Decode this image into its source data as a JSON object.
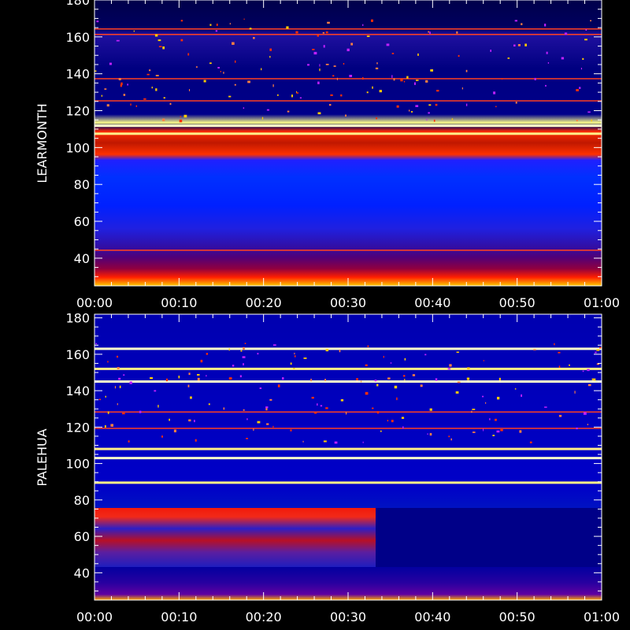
{
  "chart_data": [
    {
      "type": "heatmap",
      "station": "LEARMONTH",
      "ylabel": "LEARMONTH",
      "xlim": [
        "00:00",
        "01:00"
      ],
      "ylim": [
        25,
        180
      ],
      "x_ticks": [
        "00:00",
        "00:10",
        "00:20",
        "00:30",
        "00:40",
        "00:50",
        "01:00"
      ],
      "y_ticks": [
        40,
        60,
        80,
        100,
        120,
        140,
        160,
        180
      ],
      "colors": {
        "background": "#00007a",
        "low": "#0000c8",
        "mid": "#ff1a00",
        "high": "#ffff88"
      },
      "bands": [
        {
          "from": 25,
          "to": 30,
          "level": "high"
        },
        {
          "from": 30,
          "to": 37,
          "level": "mid"
        },
        {
          "from": 37,
          "to": 45,
          "level": "dim"
        },
        {
          "from": 45,
          "to": 55,
          "level": "low"
        },
        {
          "from": 55,
          "to": 75,
          "level": "blue"
        },
        {
          "from": 75,
          "to": 92,
          "level": "bright-blue"
        },
        {
          "from": 92,
          "to": 108,
          "level": "mid"
        },
        {
          "from": 108,
          "to": 111,
          "level": "dark"
        },
        {
          "from": 111,
          "to": 112.5,
          "level": "high"
        },
        {
          "from": 112.5,
          "to": 160,
          "level": "background"
        },
        {
          "from": 160,
          "to": 180,
          "level": "dark"
        }
      ],
      "lines": [
        111.8,
        107.5,
        44,
        161,
        164,
        137,
        125
      ]
    },
    {
      "type": "heatmap",
      "station": "PALEHUA",
      "ylabel": "PALEHUA",
      "xlim": [
        "00:00",
        "01:00"
      ],
      "ylim": [
        25,
        182
      ],
      "x_ticks": [
        "00:00",
        "00:10",
        "00:20",
        "00:30",
        "00:40",
        "00:50",
        "01:00"
      ],
      "y_ticks": [
        40,
        60,
        80,
        100,
        120,
        140,
        160,
        180
      ],
      "colors": {
        "background": "#0000a0",
        "low": "#0000c8",
        "mid": "#ff1a00",
        "high": "#ffff88"
      },
      "bands": [
        {
          "from": 25,
          "to": 29,
          "level": "high"
        },
        {
          "from": 29,
          "to": 36,
          "level": "dim"
        },
        {
          "from": 36,
          "to": 45,
          "level": "low"
        },
        {
          "from": 45,
          "to": 75,
          "level": "split",
          "split_at": "00:33"
        },
        {
          "from": 75,
          "to": 182,
          "level": "background"
        }
      ],
      "lines": [
        163,
        152,
        145,
        108,
        103,
        89.5,
        128,
        119
      ]
    }
  ]
}
